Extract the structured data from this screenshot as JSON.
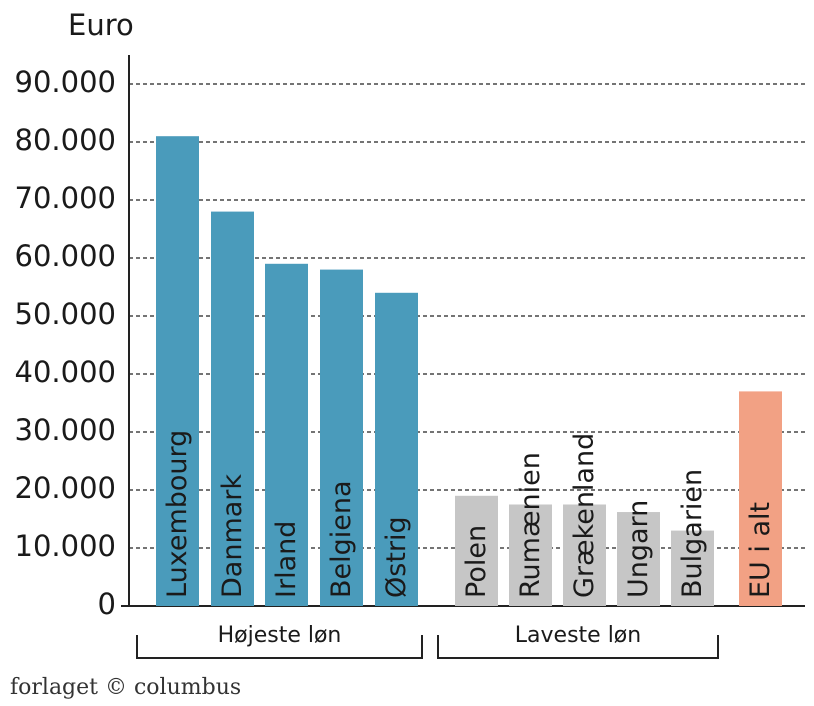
{
  "chart_data": {
    "type": "bar",
    "y_label": "Euro",
    "categories": [
      "Luxembourg",
      "Danmark",
      "Irland",
      "Belgiena",
      "Østrig",
      "Polen",
      "Rumænien",
      "Grækenland",
      "Ungarn",
      "Bulgarien",
      "EU i alt"
    ],
    "values": [
      81000,
      68000,
      59000,
      58000,
      54000,
      19000,
      17500,
      17500,
      16200,
      13000,
      37000
    ],
    "colors": [
      "#4a9bbb",
      "#4a9bbb",
      "#4a9bbb",
      "#4a9bbb",
      "#4a9bbb",
      "#c6c6c6",
      "#c6c6c6",
      "#c6c6c6",
      "#c6c6c6",
      "#c6c6c6",
      "#f2a184"
    ],
    "groups": [
      "Højeste løn",
      "Laveste løn"
    ],
    "ylim": [
      0,
      90000
    ],
    "yticks": [
      0,
      {
        "value": 10000,
        "label": "10.000"
      },
      {
        "value": 20000,
        "label": "20.000"
      },
      {
        "value": 30000,
        "label": "30.000"
      },
      {
        "value": 40000,
        "label": "40.000"
      },
      {
        "value": 50000,
        "label": "50.000"
      },
      {
        "value": 60000,
        "label": "60.000"
      },
      {
        "value": 70000,
        "label": "70.000"
      },
      {
        "value": 80000,
        "label": "80.000"
      },
      {
        "value": 90000,
        "label": "90.000"
      }
    ],
    "grid": true,
    "footer": "forlaget © columbus"
  }
}
